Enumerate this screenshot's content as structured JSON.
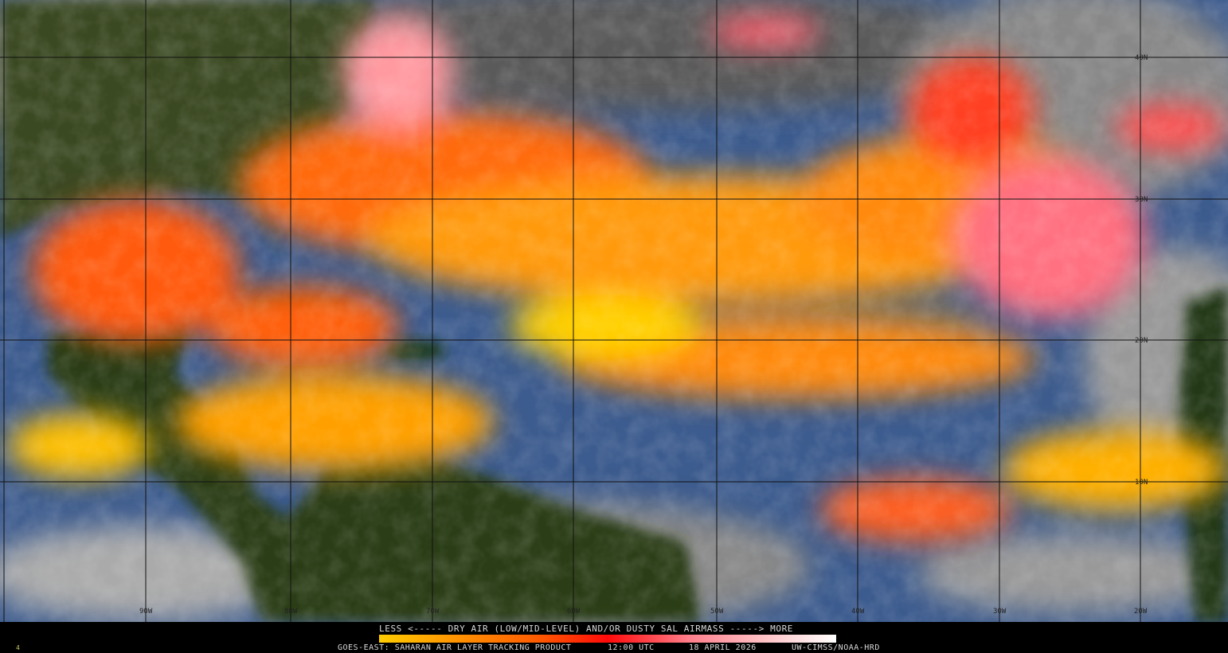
{
  "legend": {
    "title": "LESS <----- DRY AIR (LOW/MID-LEVEL) AND/OR DUSTY SAL AIRMASS -----> MORE",
    "scale_colors": [
      "#ffcc00",
      "#ff9900",
      "#ff5a00",
      "#ff0a0a",
      "#ff7f8c",
      "#ffc4c8",
      "#ffffff"
    ]
  },
  "footer": {
    "product": "GOES-EAST: SAHARAN AIR LAYER TRACKING PRODUCT",
    "time": "12:00 UTC",
    "date": "18 APRIL 2026",
    "credit": "UW-CIMSS/NOAA-HRD",
    "corner_mark": "4"
  },
  "grid": {
    "longitudes": [
      "90W",
      "80W",
      "70W",
      "60W",
      "50W",
      "40W",
      "30W",
      "20W"
    ],
    "latitudes": [
      "40N",
      "30N",
      "20N",
      "10N"
    ]
  },
  "colors": {
    "ocean": "#3a5a8c",
    "land": "#1e3a12",
    "cloud": "#9a9a9a"
  }
}
